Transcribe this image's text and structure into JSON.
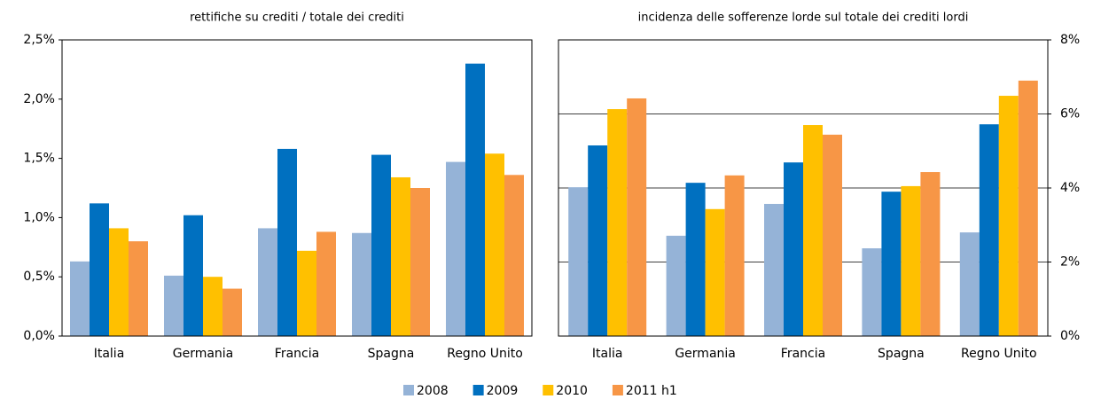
{
  "chart_data": [
    {
      "type": "bar",
      "title": "rettifiche su crediti / totale dei crediti",
      "categories": [
        "Italia",
        "Germania",
        "Francia",
        "Spagna",
        "Regno Unito"
      ],
      "series": [
        {
          "name": "2008",
          "color": "#95b3d7",
          "values": [
            0.63,
            0.51,
            0.91,
            0.87,
            1.47
          ]
        },
        {
          "name": "2009",
          "color": "#0070c0",
          "values": [
            1.12,
            1.02,
            1.58,
            1.53,
            2.3
          ]
        },
        {
          "name": "2010",
          "color": "#ffc000",
          "values": [
            0.91,
            0.5,
            0.72,
            1.34,
            1.54
          ]
        },
        {
          "name": "2011 h1",
          "color": "#f79646",
          "values": [
            0.8,
            0.4,
            0.88,
            1.25,
            1.36
          ]
        }
      ],
      "ylim": [
        0,
        2.5
      ],
      "yticks": [
        {
          "value": 0,
          "label": "0,0%"
        },
        {
          "value": 0.5,
          "label": "0,5%"
        },
        {
          "value": 1,
          "label": "1,0%"
        },
        {
          "value": 1.5,
          "label": "1,5%"
        },
        {
          "value": 2,
          "label": "2,0%"
        },
        {
          "value": 2.5,
          "label": "2,5%"
        }
      ],
      "grid": false,
      "axis_side": "left"
    },
    {
      "type": "bar",
      "title": "incidenza delle sofferenze lorde sul totale dei crediti lordi",
      "categories": [
        "Italia",
        "Germania",
        "Francia",
        "Spagna",
        "Regno Unito"
      ],
      "series": [
        {
          "color": "#95b3d7",
          "values": [
            4.02,
            2.71,
            3.57,
            2.37,
            2.8
          ]
        },
        {
          "color": "#0070c0",
          "values": [
            5.15,
            4.14,
            4.69,
            3.9,
            5.72
          ]
        },
        {
          "color": "#ffc000",
          "values": [
            6.13,
            3.43,
            5.7,
            4.05,
            6.49
          ]
        },
        {
          "color": "#f79646",
          "values": [
            6.42,
            4.34,
            5.44,
            4.43,
            6.9
          ]
        }
      ],
      "ylim": [
        0,
        8
      ],
      "yticks": [
        {
          "value": 0,
          "label": "0%"
        },
        {
          "value": 2,
          "label": "2%"
        },
        {
          "value": 4,
          "label": "4%"
        },
        {
          "value": 6,
          "label": "6%"
        },
        {
          "value": 8,
          "label": "8%"
        }
      ],
      "grid": true,
      "axis_side": "right"
    }
  ]
}
